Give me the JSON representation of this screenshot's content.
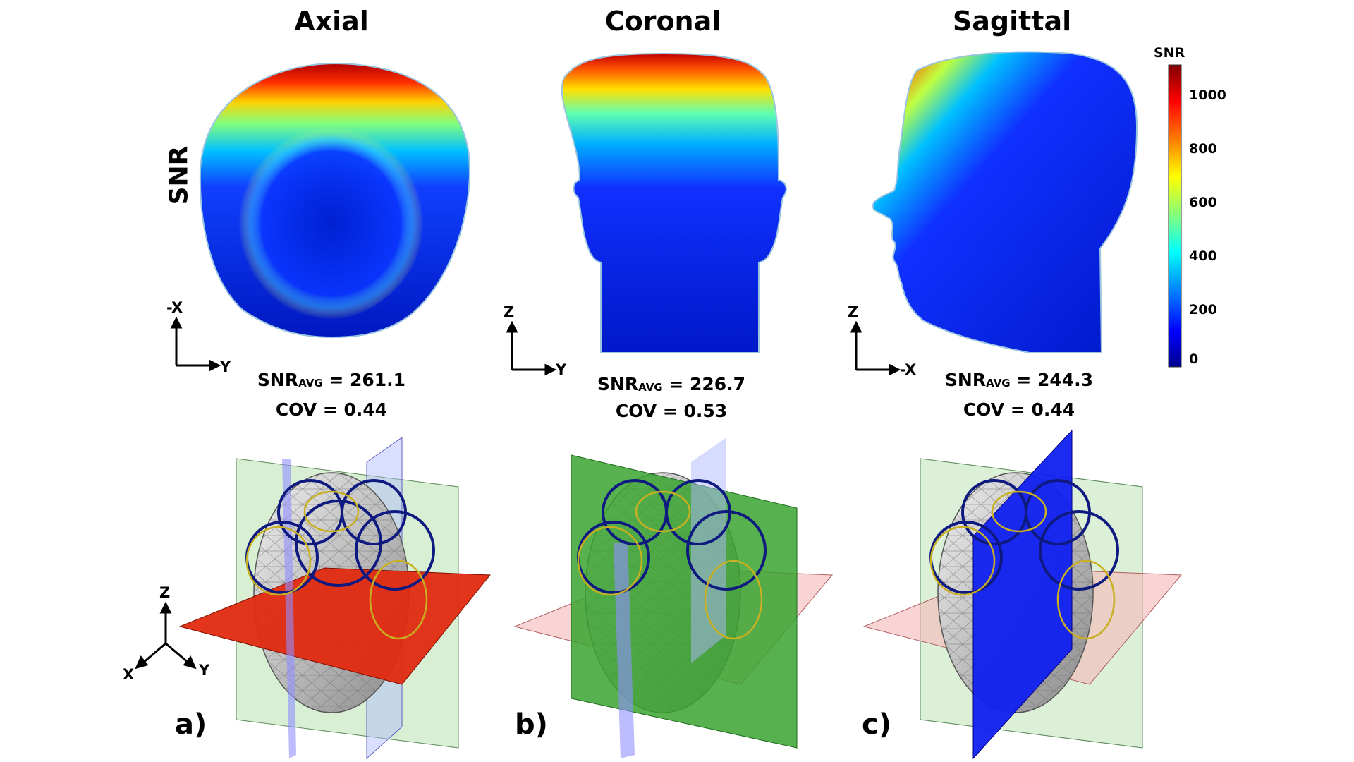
{
  "row_label": "SNR",
  "views": [
    {
      "title": "Axial",
      "stat_avg_prefix": "SNR",
      "stat_avg_sub": "AVG",
      "stat_avg_value": " = 261.1",
      "stat_cov": "COV = 0.44",
      "axis_vertical": "-X",
      "axis_horizontal": "Y",
      "panel_letter": "a)"
    },
    {
      "title": "Coronal",
      "stat_avg_prefix": "SNR",
      "stat_avg_sub": "AVG",
      "stat_avg_value": " = 226.7",
      "stat_cov": "COV = 0.53",
      "axis_vertical": "Z",
      "axis_horizontal": "Y",
      "panel_letter": "b)"
    },
    {
      "title": "Sagittal",
      "stat_avg_prefix": "SNR",
      "stat_avg_sub": "AVG",
      "stat_avg_value": " = 244.3",
      "stat_cov": "COV = 0.44",
      "axis_vertical": "Z",
      "axis_horizontal": "-X",
      "panel_letter": "c)"
    }
  ],
  "colorbar": {
    "title": "SNR",
    "ticks": [
      "1000",
      "800",
      "600",
      "400",
      "200",
      "0"
    ],
    "colors": [
      "#7f0000",
      "#ff0000",
      "#ff8000",
      "#ffff00",
      "#80ff80",
      "#00ffff",
      "#0080ff",
      "#0000ff",
      "#00008f"
    ]
  },
  "triad": {
    "z": "Z",
    "x": "X",
    "y": "Y"
  }
}
